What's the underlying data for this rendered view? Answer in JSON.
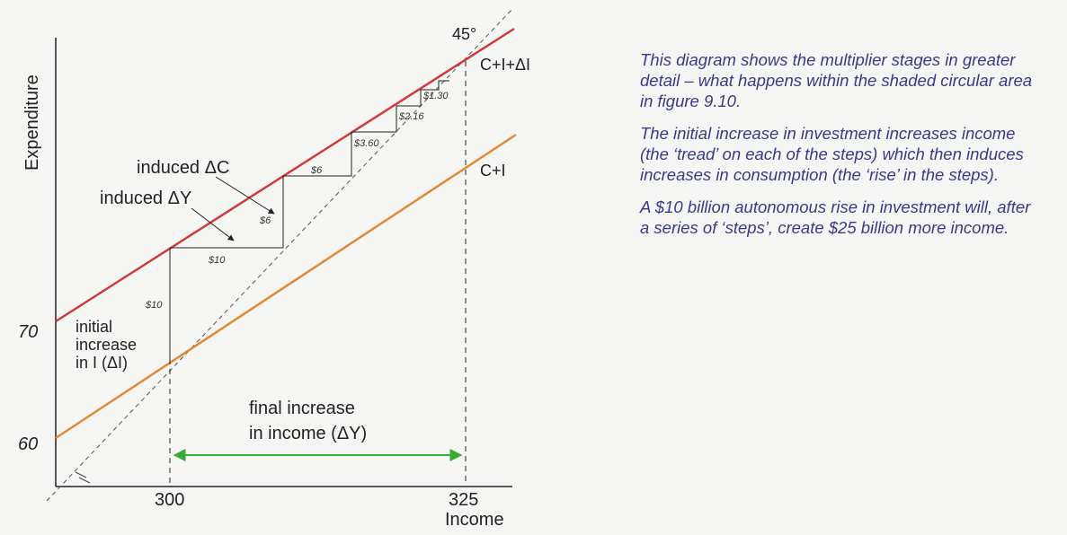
{
  "axes": {
    "y_label": "Expenditure",
    "x_label": "Income",
    "y_ticks": [
      "70",
      "60"
    ],
    "x_ticks": [
      "300",
      "325"
    ]
  },
  "lines": {
    "upper_label": "C+I+ΔI",
    "lower_label": "C+I",
    "diagonal_label": "45°",
    "upper_color": "#d23a3a",
    "lower_color": "#e08a35"
  },
  "annotations": {
    "initial_1": "initial",
    "initial_2": "increase",
    "initial_3": "in I (ΔI)",
    "induced_c": "induced ΔC",
    "induced_y": "induced ΔY",
    "final_1": "final increase",
    "final_2": "in income (ΔY)",
    "arrow_color": "#3aaa35"
  },
  "steps": {
    "rise_10": "$10",
    "tread_10": "$10",
    "rise_6": "$6",
    "tread_6": "$6",
    "val_360": "$3.60",
    "val_216": "$2.16",
    "val_130": "$1.30"
  },
  "side_text": {
    "p1": "This diagram shows the multiplier stages in greater detail – what happens within the shaded circular area in figure 9.10.",
    "p2": "The initial increase in investment increases income (the ‘tread’ on each of the steps) which then induces increases in consumption (the ‘rise’ in the steps).",
    "p3": "A $10 billion autonomous rise in investment will, after a series of ‘steps’, create $25 billion more income."
  }
}
